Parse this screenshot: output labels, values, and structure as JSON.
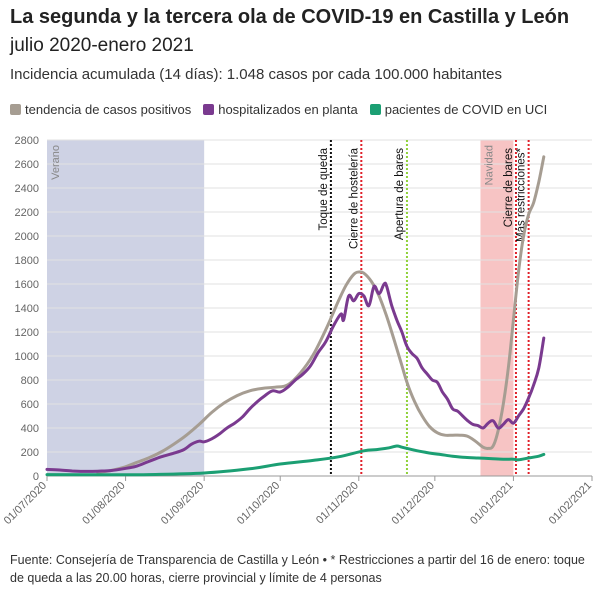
{
  "title": "La segunda y la tercera ola de COVID-19 en Castilla y León",
  "subtitle": "julio 2020-enero 2021",
  "incidence": "Incidencia acumulada (14 días): 1.048 casos por cada 100.000 habitantes",
  "source": "Fuente: Consejería de Transparencia de Castilla y León • * Restricciones a partir del 16 de enero: toque de queda a las 20.00 horas, cierre provincial y límite de 4 personas",
  "colors": {
    "trend": "#a69d92",
    "hosp": "#7a3a8f",
    "icu": "#1b9f73",
    "summer": "#ced2e4",
    "christmas": "#f7c4c4",
    "black_line": "#111111",
    "red_line": "#e0202a",
    "green_line": "#8fd13a",
    "grid": "#e2e2e2"
  },
  "chart_data": {
    "type": "line",
    "x_domain_days": [
      0,
      215
    ],
    "ylim": [
      0,
      2800
    ],
    "yticks": [
      0,
      200,
      400,
      600,
      800,
      1000,
      1200,
      1400,
      1600,
      1800,
      2000,
      2200,
      2400,
      2600,
      2800
    ],
    "xticks": [
      {
        "label": "01/07/2020",
        "day": 0
      },
      {
        "label": "01/08/2020",
        "day": 31
      },
      {
        "label": "01/09/2020",
        "day": 62
      },
      {
        "label": "01/10/2020",
        "day": 92
      },
      {
        "label": "01/11/2020",
        "day": 123
      },
      {
        "label": "01/12/2020",
        "day": 153
      },
      {
        "label": "01/01/2021",
        "day": 184
      },
      {
        "label": "01/02/2021",
        "day": 215
      }
    ],
    "legend": [
      {
        "label": "tendencia de casos positivos",
        "key": "trend"
      },
      {
        "label": "hospitalizados en planta",
        "key": "hosp"
      },
      {
        "label": "pacientes de COVID en UCI",
        "key": "icu"
      }
    ],
    "periods": [
      {
        "label": "Verano",
        "start": 0,
        "end": 62,
        "color_key": "summer"
      },
      {
        "label": "Navidad",
        "start": 171,
        "end": 184,
        "color_key": "christmas"
      }
    ],
    "events": [
      {
        "label": "Toque de queda",
        "day": 112,
        "color_key": "black_line"
      },
      {
        "label": "Cierre de hostelería",
        "day": 124,
        "color_key": "red_line"
      },
      {
        "label": "Apertura de bares",
        "day": 142,
        "color_key": "green_line"
      },
      {
        "label": "Cierre de bares",
        "day": 185,
        "color_key": "red_line"
      },
      {
        "label": "Más restricciones*",
        "day": 190,
        "color_key": "red_line"
      }
    ],
    "series": [
      {
        "name": "tendencia de casos positivos",
        "key": "trend",
        "points": [
          [
            20,
            30
          ],
          [
            25,
            45
          ],
          [
            30,
            70
          ],
          [
            35,
            110
          ],
          [
            40,
            150
          ],
          [
            45,
            200
          ],
          [
            50,
            265
          ],
          [
            55,
            340
          ],
          [
            60,
            430
          ],
          [
            65,
            530
          ],
          [
            70,
            610
          ],
          [
            75,
            670
          ],
          [
            80,
            710
          ],
          [
            85,
            730
          ],
          [
            90,
            740
          ],
          [
            95,
            760
          ],
          [
            100,
            860
          ],
          [
            105,
            1010
          ],
          [
            110,
            1220
          ],
          [
            115,
            1460
          ],
          [
            118,
            1590
          ],
          [
            121,
            1680
          ],
          [
            123,
            1700
          ],
          [
            125,
            1690
          ],
          [
            128,
            1620
          ],
          [
            131,
            1500
          ],
          [
            134,
            1330
          ],
          [
            137,
            1130
          ],
          [
            140,
            920
          ],
          [
            142,
            780
          ],
          [
            145,
            620
          ],
          [
            148,
            500
          ],
          [
            151,
            410
          ],
          [
            154,
            360
          ],
          [
            157,
            340
          ],
          [
            160,
            340
          ],
          [
            163,
            340
          ],
          [
            166,
            330
          ],
          [
            169,
            290
          ],
          [
            172,
            240
          ],
          [
            174,
            230
          ],
          [
            176,
            250
          ],
          [
            178,
            380
          ],
          [
            180,
            600
          ],
          [
            182,
            900
          ],
          [
            184,
            1300
          ],
          [
            186,
            1700
          ],
          [
            188,
            2000
          ],
          [
            190,
            2180
          ],
          [
            192,
            2280
          ],
          [
            194,
            2450
          ],
          [
            196,
            2660
          ]
        ]
      },
      {
        "name": "hospitalizados en planta",
        "key": "hosp",
        "points": [
          [
            0,
            55
          ],
          [
            5,
            50
          ],
          [
            10,
            42
          ],
          [
            15,
            38
          ],
          [
            20,
            40
          ],
          [
            25,
            45
          ],
          [
            30,
            60
          ],
          [
            35,
            80
          ],
          [
            40,
            120
          ],
          [
            45,
            160
          ],
          [
            50,
            190
          ],
          [
            54,
            220
          ],
          [
            57,
            265
          ],
          [
            60,
            290
          ],
          [
            62,
            285
          ],
          [
            65,
            310
          ],
          [
            68,
            350
          ],
          [
            71,
            400
          ],
          [
            74,
            440
          ],
          [
            77,
            490
          ],
          [
            80,
            560
          ],
          [
            83,
            620
          ],
          [
            86,
            670
          ],
          [
            89,
            710
          ],
          [
            92,
            700
          ],
          [
            95,
            740
          ],
          [
            98,
            800
          ],
          [
            101,
            850
          ],
          [
            104,
            920
          ],
          [
            107,
            1030
          ],
          [
            110,
            1120
          ],
          [
            113,
            1250
          ],
          [
            116,
            1350
          ],
          [
            117,
            1300
          ],
          [
            119,
            1500
          ],
          [
            121,
            1460
          ],
          [
            123,
            1520
          ],
          [
            125,
            1500
          ],
          [
            127,
            1420
          ],
          [
            129,
            1580
          ],
          [
            131,
            1520
          ],
          [
            133,
            1600
          ],
          [
            134,
            1580
          ],
          [
            136,
            1420
          ],
          [
            138,
            1300
          ],
          [
            140,
            1200
          ],
          [
            142,
            1080
          ],
          [
            144,
            1020
          ],
          [
            146,
            980
          ],
          [
            148,
            900
          ],
          [
            150,
            850
          ],
          [
            152,
            800
          ],
          [
            154,
            780
          ],
          [
            156,
            700
          ],
          [
            158,
            640
          ],
          [
            160,
            560
          ],
          [
            162,
            540
          ],
          [
            164,
            500
          ],
          [
            166,
            460
          ],
          [
            168,
            430
          ],
          [
            170,
            420
          ],
          [
            172,
            400
          ],
          [
            174,
            440
          ],
          [
            176,
            460
          ],
          [
            178,
            400
          ],
          [
            180,
            430
          ],
          [
            182,
            470
          ],
          [
            184,
            440
          ],
          [
            186,
            500
          ],
          [
            188,
            560
          ],
          [
            190,
            650
          ],
          [
            192,
            760
          ],
          [
            194,
            900
          ],
          [
            196,
            1150
          ]
        ]
      },
      {
        "name": "pacientes de COVID en UCI",
        "key": "icu",
        "points": [
          [
            0,
            12
          ],
          [
            20,
            10
          ],
          [
            40,
            12
          ],
          [
            62,
            25
          ],
          [
            80,
            60
          ],
          [
            92,
            100
          ],
          [
            105,
            130
          ],
          [
            115,
            160
          ],
          [
            125,
            210
          ],
          [
            130,
            220
          ],
          [
            135,
            235
          ],
          [
            138,
            250
          ],
          [
            140,
            240
          ],
          [
            145,
            215
          ],
          [
            150,
            195
          ],
          [
            155,
            180
          ],
          [
            160,
            165
          ],
          [
            165,
            155
          ],
          [
            170,
            150
          ],
          [
            175,
            145
          ],
          [
            180,
            140
          ],
          [
            184,
            140
          ],
          [
            186,
            135
          ],
          [
            190,
            150
          ],
          [
            194,
            165
          ],
          [
            196,
            180
          ]
        ]
      }
    ]
  }
}
